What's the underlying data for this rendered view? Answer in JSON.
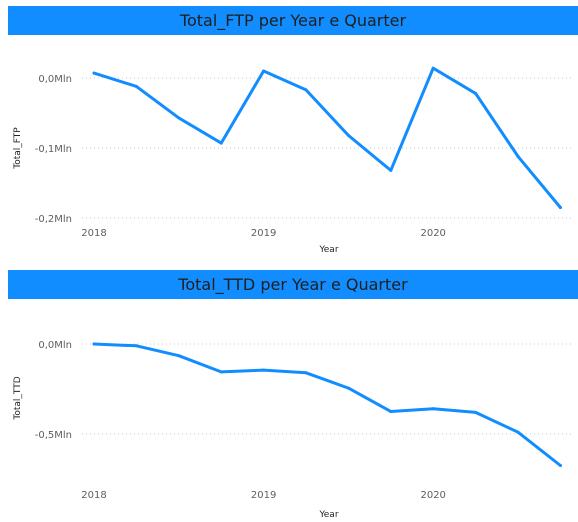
{
  "chart_data": [
    {
      "type": "line",
      "title": "Total_FTP per Year e Quarter",
      "xlabel": "Year",
      "ylabel": "Total_FTP",
      "x_ticks": [
        "2018",
        "2019",
        "2020"
      ],
      "y_ticks": [
        {
          "value": 0,
          "label": "0,0Mln"
        },
        {
          "value": -0.1,
          "label": "-0,1Mln"
        },
        {
          "value": -0.2,
          "label": "-0,2Mln"
        }
      ],
      "ylim": [
        -0.2,
        0.0
      ],
      "grid": true,
      "series_color": "#118dff",
      "x": [
        "2018 Q1",
        "2018 Q2",
        "2018 Q3",
        "2018 Q4",
        "2019 Q1",
        "2019 Q2",
        "2019 Q3",
        "2019 Q4",
        "2020 Q1",
        "2020 Q2",
        "2020 Q3",
        "2020 Q4"
      ],
      "values": [
        0.007,
        -0.012,
        -0.057,
        -0.093,
        0.01,
        -0.017,
        -0.082,
        -0.132,
        0.014,
        -0.022,
        -0.112,
        -0.185
      ]
    },
    {
      "type": "line",
      "title": "Total_TTD per Year e Quarter",
      "xlabel": "Year",
      "ylabel": "Total_TTD",
      "x_ticks": [
        "2018",
        "2019",
        "2020"
      ],
      "y_ticks": [
        {
          "value": 0,
          "label": "0,0Mln"
        },
        {
          "value": -0.5,
          "label": "-0,5Mln"
        }
      ],
      "ylim": [
        -0.5,
        0.0
      ],
      "grid": true,
      "series_color": "#118dff",
      "x": [
        "2018 Q1",
        "2018 Q2",
        "2018 Q3",
        "2018 Q4",
        "2019 Q1",
        "2019 Q2",
        "2019 Q3",
        "2019 Q4",
        "2020 Q1",
        "2020 Q2",
        "2020 Q3",
        "2020 Q4"
      ],
      "values": [
        0.0,
        -0.01,
        -0.065,
        -0.155,
        -0.145,
        -0.16,
        -0.245,
        -0.375,
        -0.36,
        -0.38,
        -0.49,
        -0.675
      ]
    }
  ]
}
